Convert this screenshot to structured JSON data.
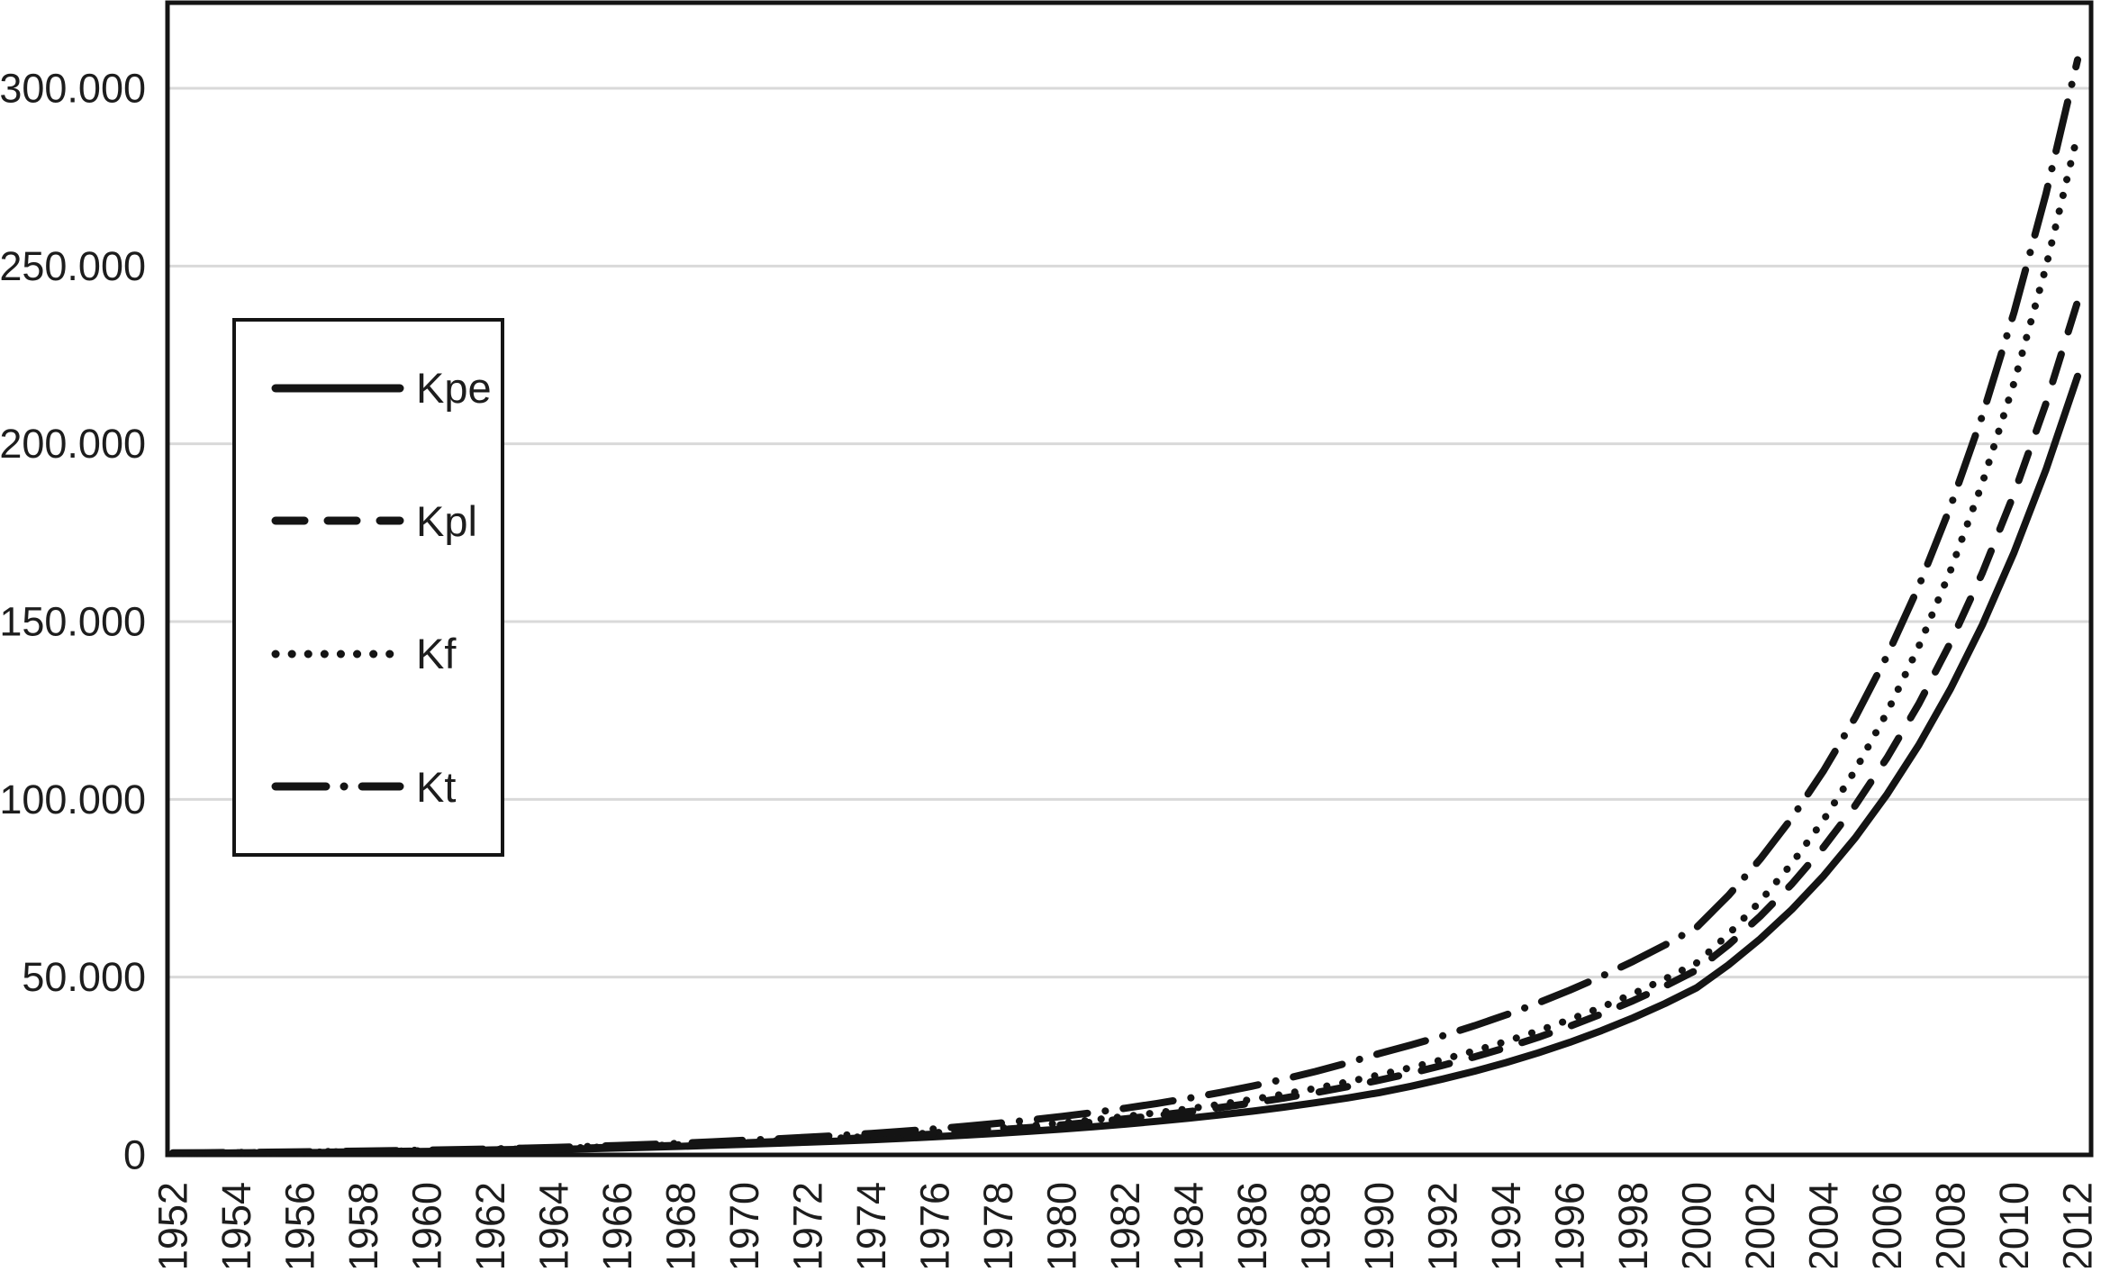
{
  "chart_data": {
    "type": "line",
    "title": "",
    "xlabel": "",
    "ylabel": "",
    "grid": "horizontal",
    "legend_position": "upper-left-inside",
    "line_color": "#141414",
    "gridline_color": "#d9d9d9",
    "ylim": [
      0,
      300000
    ],
    "y_ticks": [
      0,
      50000,
      100000,
      150000,
      200000,
      250000,
      300000
    ],
    "y_tick_labels": [
      "0",
      "50.000",
      "100.000",
      "150.000",
      "200.000",
      "250.000",
      "300.000"
    ],
    "x_tick_step": 2,
    "x": [
      1952,
      1953,
      1954,
      1955,
      1956,
      1957,
      1958,
      1959,
      1960,
      1961,
      1962,
      1963,
      1964,
      1965,
      1966,
      1967,
      1968,
      1969,
      1970,
      1971,
      1972,
      1973,
      1974,
      1975,
      1976,
      1977,
      1978,
      1979,
      1980,
      1981,
      1982,
      1983,
      1984,
      1985,
      1986,
      1987,
      1988,
      1989,
      1990,
      1991,
      1992,
      1993,
      1994,
      1995,
      1996,
      1997,
      1998,
      1999,
      2000,
      2001,
      2002,
      2003,
      2004,
      2005,
      2006,
      2007,
      2008,
      2009,
      2010,
      2011,
      2012
    ],
    "series": [
      {
        "name": "Kpe",
        "dash": "solid",
        "values": [
          400,
          447,
          500,
          560,
          626,
          700,
          783,
          876,
          979,
          1095,
          1225,
          1370,
          1532,
          1714,
          1917,
          2144,
          2398,
          2682,
          3000,
          3277,
          3579,
          3909,
          4269,
          4663,
          5093,
          5562,
          6075,
          6635,
          7247,
          7915,
          8645,
          9442,
          10312,
          11263,
          12301,
          13435,
          14674,
          16026,
          17500,
          19317,
          21323,
          23537,
          25981,
          28679,
          31657,
          34944,
          38572,
          42578,
          47000,
          53432,
          60744,
          69057,
          78507,
          89250,
          101464,
          115349,
          131135,
          149082,
          169484,
          192678,
          219000
        ]
      },
      {
        "name": "Kpl",
        "dash": "dashed",
        "values": [
          450,
          503,
          563,
          630,
          705,
          789,
          883,
          988,
          1105,
          1237,
          1384,
          1548,
          1732,
          1938,
          2168,
          2426,
          2715,
          3038,
          3400,
          3724,
          4079,
          4468,
          4894,
          5360,
          5871,
          6431,
          7044,
          7715,
          8450,
          9256,
          10138,
          11104,
          12163,
          13322,
          14592,
          15983,
          17506,
          19175,
          21000,
          22993,
          25176,
          27565,
          30181,
          33046,
          36182,
          39616,
          43376,
          47493,
          52000,
          59068,
          67097,
          76217,
          86577,
          98345,
          111713,
          126898,
          144147,
          163740,
          185997,
          211279,
          240000
        ]
      },
      {
        "name": "Kf",
        "dash": "dotted",
        "values": [
          480,
          537,
          600,
          671,
          751,
          840,
          939,
          1050,
          1175,
          1314,
          1470,
          1644,
          1838,
          2056,
          2300,
          2572,
          2877,
          3218,
          3600,
          3945,
          4324,
          4739,
          5194,
          5692,
          6238,
          6837,
          7493,
          8212,
          9000,
          9864,
          10810,
          11848,
          12985,
          14231,
          15596,
          17093,
          18733,
          20531,
          22500,
          24559,
          26807,
          29260,
          31938,
          34861,
          38051,
          41533,
          45334,
          49483,
          54000,
          62065,
          71334,
          81988,
          94232,
          108306,
          124481,
          143071,
          164438,
          188996,
          217222,
          249664,
          287000
        ]
      },
      {
        "name": "Kt",
        "dash": "long-dash-dot",
        "values": [
          550,
          615,
          688,
          769,
          860,
          961,
          1075,
          1202,
          1344,
          1502,
          1680,
          1878,
          2100,
          2348,
          2625,
          2935,
          3281,
          3668,
          4100,
          4517,
          4977,
          5484,
          6042,
          6657,
          7335,
          8081,
          8904,
          9811,
          10809,
          11910,
          13122,
          14458,
          15930,
          17551,
          19338,
          21306,
          23475,
          25865,
          28500,
          30901,
          33505,
          36328,
          39389,
          42708,
          46307,
          50209,
          54439,
          59026,
          64000,
          72953,
          83159,
          94793,
          108054,
          123170,
          140401,
          160042,
          182430,
          207951,
          237042,
          270202,
          308000
        ]
      }
    ]
  }
}
